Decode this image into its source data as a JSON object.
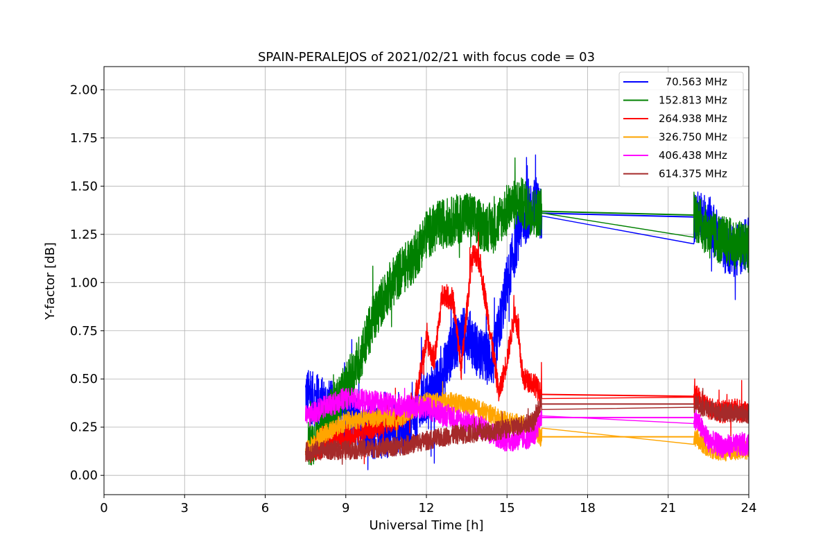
{
  "chart_data": {
    "type": "line",
    "title": "SPAIN-PERALEJOS of 2021/02/21 with focus code = 03",
    "xlabel": "Universal Time [h]",
    "ylabel": "Y-factor [dB]",
    "xlim": [
      0,
      24
    ],
    "ylim": [
      -0.1,
      2.12
    ],
    "xticks": [
      0,
      3,
      6,
      9,
      12,
      15,
      18,
      21,
      24
    ],
    "xtick_labels": [
      "0",
      "3",
      "6",
      "9",
      "12",
      "15",
      "18",
      "21",
      "24"
    ],
    "yticks": [
      0.0,
      0.25,
      0.5,
      0.75,
      1.0,
      1.25,
      1.5,
      1.75,
      2.0
    ],
    "ytick_labels": [
      "0.00",
      "0.25",
      "0.50",
      "0.75",
      "1.00",
      "1.25",
      "1.50",
      "1.75",
      "2.00"
    ],
    "grid": true,
    "legend_position": "top-right",
    "series": [
      {
        "name": "  70.563 MHz",
        "color": "#0000ff",
        "noise": 0.14,
        "spike_prob": 0.03,
        "spike_size": 0.3,
        "x": [
          7.5,
          8.0,
          9.0,
          10.0,
          11.0,
          11.5,
          12.0,
          12.5,
          13.0,
          13.5,
          14.0,
          14.5,
          15.0,
          15.5,
          16.0,
          16.25,
          22.0,
          22.5,
          23.0,
          23.5,
          24.0
        ],
        "y": [
          0.42,
          0.38,
          0.32,
          0.22,
          0.24,
          0.27,
          0.4,
          0.48,
          0.68,
          0.75,
          0.62,
          0.6,
          1.0,
          1.3,
          1.4,
          1.36,
          1.34,
          1.32,
          1.2,
          1.15,
          1.22
        ]
      },
      {
        "name": "152.813 MHz",
        "color": "#008000",
        "noise": 0.13,
        "spike_prob": 0.02,
        "spike_size": 0.2,
        "x": [
          7.6,
          8.0,
          9.0,
          9.5,
          10.0,
          10.5,
          11.0,
          11.5,
          12.0,
          12.5,
          13.0,
          13.5,
          14.0,
          14.5,
          15.0,
          15.5,
          16.0,
          16.25,
          22.0,
          22.5,
          23.0,
          23.5,
          24.0
        ],
        "y": [
          0.15,
          0.22,
          0.45,
          0.6,
          0.8,
          0.95,
          1.05,
          1.12,
          1.25,
          1.3,
          1.32,
          1.35,
          1.3,
          1.28,
          1.38,
          1.42,
          1.36,
          1.37,
          1.35,
          1.25,
          1.22,
          1.2,
          1.18
        ]
      },
      {
        "name": "264.938 MHz",
        "color": "#ff0000",
        "noise": 0.06,
        "spike_prob": 0.02,
        "spike_size": 0.15,
        "x": [
          7.6,
          9.0,
          10.0,
          11.0,
          11.5,
          11.8,
          12.0,
          12.3,
          12.6,
          13.0,
          13.3,
          13.7,
          14.0,
          14.4,
          14.7,
          15.0,
          15.3,
          15.6,
          16.0,
          16.25,
          22.0,
          22.5,
          23.0,
          23.5,
          24.0
        ],
        "y": [
          0.12,
          0.2,
          0.25,
          0.3,
          0.35,
          0.55,
          0.7,
          0.6,
          0.95,
          0.9,
          0.55,
          1.15,
          1.1,
          0.72,
          0.42,
          0.6,
          0.85,
          0.5,
          0.48,
          0.42,
          0.41,
          0.35,
          0.33,
          0.34,
          0.32
        ]
      },
      {
        "name": "326.750 MHz",
        "color": "#ffa500",
        "noise": 0.05,
        "spike_prob": 0.01,
        "spike_size": 0.1,
        "x": [
          7.5,
          8.0,
          9.0,
          10.0,
          11.0,
          12.0,
          13.0,
          14.0,
          15.0,
          16.0,
          16.25,
          22.0,
          22.5,
          23.0,
          24.0
        ],
        "y": [
          0.12,
          0.2,
          0.28,
          0.3,
          0.3,
          0.38,
          0.38,
          0.34,
          0.28,
          0.25,
          0.2,
          0.2,
          0.14,
          0.12,
          0.13
        ]
      },
      {
        "name": "406.438 MHz",
        "color": "#ff00ff",
        "noise": 0.06,
        "spike_prob": 0.01,
        "spike_size": 0.1,
        "x": [
          7.5,
          8.0,
          9.0,
          10.0,
          11.0,
          12.0,
          13.0,
          14.0,
          15.0,
          16.0,
          16.25,
          22.0,
          22.5,
          23.0,
          24.0
        ],
        "y": [
          0.3,
          0.34,
          0.4,
          0.38,
          0.36,
          0.35,
          0.3,
          0.25,
          0.18,
          0.2,
          0.3,
          0.3,
          0.18,
          0.15,
          0.16
        ]
      },
      {
        "name": "614.375 MHz",
        "color": "#a52a2a",
        "noise": 0.05,
        "spike_prob": 0.01,
        "spike_size": 0.08,
        "x": [
          7.5,
          8.0,
          9.0,
          10.0,
          11.0,
          12.0,
          13.0,
          14.0,
          15.0,
          16.0,
          16.25,
          22.0,
          22.5,
          23.0,
          24.0
        ],
        "y": [
          0.12,
          0.13,
          0.13,
          0.14,
          0.15,
          0.18,
          0.21,
          0.22,
          0.24,
          0.28,
          0.37,
          0.37,
          0.34,
          0.33,
          0.32
        ]
      }
    ]
  }
}
